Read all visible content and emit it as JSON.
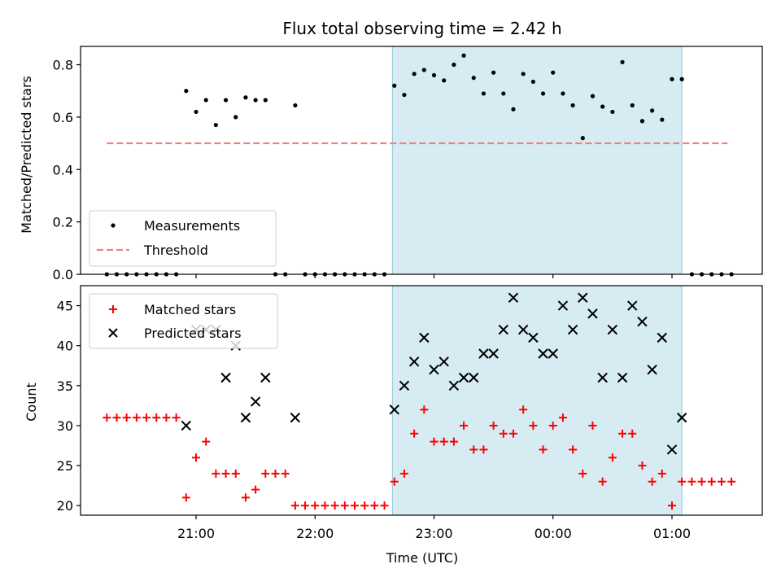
{
  "chart_data": {
    "type": "scatter",
    "title": "Flux total observing time = 2.42 h",
    "xlabel": "Time (UTC)",
    "x_ticks": [
      "21:00",
      "22:00",
      "23:00",
      "00:00",
      "01:00"
    ],
    "colors": {
      "measurements": "#000000",
      "threshold": "#f08080",
      "matched": "#ff0000",
      "predicted": "#000000",
      "span": "#add8e6"
    },
    "observing_span": {
      "start": "22:39",
      "end": "01:05"
    },
    "top_panel": {
      "ylabel": "Matched/Predicted stars",
      "ylim": [
        0,
        0.87
      ],
      "y_ticks": [
        "0.0",
        "0.2",
        "0.4",
        "0.6",
        "0.8"
      ],
      "threshold": 0.5,
      "threshold_range": [
        "20:15",
        "01:28"
      ],
      "legend": [
        "Measurements",
        "Threshold"
      ],
      "legend_position": "lower-left",
      "measurements": [
        {
          "t": "20:15",
          "v": 0.0
        },
        {
          "t": "20:20",
          "v": 0.0
        },
        {
          "t": "20:25",
          "v": 0.0
        },
        {
          "t": "20:30",
          "v": 0.0
        },
        {
          "t": "20:35",
          "v": 0.0
        },
        {
          "t": "20:40",
          "v": 0.0
        },
        {
          "t": "20:45",
          "v": 0.0
        },
        {
          "t": "20:50",
          "v": 0.0
        },
        {
          "t": "20:55",
          "v": 0.7
        },
        {
          "t": "21:00",
          "v": 0.62
        },
        {
          "t": "21:05",
          "v": 0.665
        },
        {
          "t": "21:10",
          "v": 0.57
        },
        {
          "t": "21:15",
          "v": 0.665
        },
        {
          "t": "21:20",
          "v": 0.6
        },
        {
          "t": "21:25",
          "v": 0.675
        },
        {
          "t": "21:30",
          "v": 0.665
        },
        {
          "t": "21:35",
          "v": 0.665
        },
        {
          "t": "21:40",
          "v": 0.0
        },
        {
          "t": "21:45",
          "v": 0.0
        },
        {
          "t": "21:50",
          "v": 0.645
        },
        {
          "t": "21:55",
          "v": 0.0
        },
        {
          "t": "22:00",
          "v": 0.0
        },
        {
          "t": "22:05",
          "v": 0.0
        },
        {
          "t": "22:10",
          "v": 0.0
        },
        {
          "t": "22:15",
          "v": 0.0
        },
        {
          "t": "22:20",
          "v": 0.0
        },
        {
          "t": "22:25",
          "v": 0.0
        },
        {
          "t": "22:30",
          "v": 0.0
        },
        {
          "t": "22:35",
          "v": 0.0
        },
        {
          "t": "22:40",
          "v": 0.72
        },
        {
          "t": "22:45",
          "v": 0.685
        },
        {
          "t": "22:50",
          "v": 0.765
        },
        {
          "t": "22:55",
          "v": 0.78
        },
        {
          "t": "23:00",
          "v": 0.76
        },
        {
          "t": "23:05",
          "v": 0.74
        },
        {
          "t": "23:10",
          "v": 0.8
        },
        {
          "t": "23:15",
          "v": 0.835
        },
        {
          "t": "23:20",
          "v": 0.75
        },
        {
          "t": "23:25",
          "v": 0.69
        },
        {
          "t": "23:30",
          "v": 0.77
        },
        {
          "t": "23:35",
          "v": 0.69
        },
        {
          "t": "23:40",
          "v": 0.63
        },
        {
          "t": "23:45",
          "v": 0.765
        },
        {
          "t": "23:50",
          "v": 0.735
        },
        {
          "t": "23:55",
          "v": 0.69
        },
        {
          "t": "00:00",
          "v": 0.77
        },
        {
          "t": "00:05",
          "v": 0.69
        },
        {
          "t": "00:10",
          "v": 0.645
        },
        {
          "t": "00:15",
          "v": 0.52
        },
        {
          "t": "00:20",
          "v": 0.68
        },
        {
          "t": "00:25",
          "v": 0.64
        },
        {
          "t": "00:30",
          "v": 0.62
        },
        {
          "t": "00:35",
          "v": 0.81
        },
        {
          "t": "00:40",
          "v": 0.645
        },
        {
          "t": "00:45",
          "v": 0.585
        },
        {
          "t": "00:50",
          "v": 0.625
        },
        {
          "t": "00:55",
          "v": 0.59
        },
        {
          "t": "01:00",
          "v": 0.745
        },
        {
          "t": "01:05",
          "v": 0.745
        },
        {
          "t": "01:10",
          "v": 0.0
        },
        {
          "t": "01:15",
          "v": 0.0
        },
        {
          "t": "01:20",
          "v": 0.0
        },
        {
          "t": "01:25",
          "v": 0.0
        },
        {
          "t": "01:30",
          "v": 0.0
        }
      ]
    },
    "bottom_panel": {
      "ylabel": "Count",
      "ylim": [
        18.8,
        47.5
      ],
      "y_ticks": [
        "20",
        "25",
        "30",
        "35",
        "40",
        "45"
      ],
      "legend": [
        "Matched stars",
        "Predicted stars"
      ],
      "legend_position": "upper-left",
      "matched": [
        {
          "t": "20:15",
          "v": 31
        },
        {
          "t": "20:20",
          "v": 31
        },
        {
          "t": "20:25",
          "v": 31
        },
        {
          "t": "20:30",
          "v": 31
        },
        {
          "t": "20:35",
          "v": 31
        },
        {
          "t": "20:40",
          "v": 31
        },
        {
          "t": "20:45",
          "v": 31
        },
        {
          "t": "20:50",
          "v": 31
        },
        {
          "t": "20:55",
          "v": 21
        },
        {
          "t": "21:00",
          "v": 26
        },
        {
          "t": "21:05",
          "v": 28
        },
        {
          "t": "21:10",
          "v": 24
        },
        {
          "t": "21:15",
          "v": 24
        },
        {
          "t": "21:20",
          "v": 24
        },
        {
          "t": "21:25",
          "v": 21
        },
        {
          "t": "21:30",
          "v": 22
        },
        {
          "t": "21:35",
          "v": 24
        },
        {
          "t": "21:40",
          "v": 24
        },
        {
          "t": "21:45",
          "v": 24
        },
        {
          "t": "21:50",
          "v": 20
        },
        {
          "t": "21:55",
          "v": 20
        },
        {
          "t": "22:00",
          "v": 20
        },
        {
          "t": "22:05",
          "v": 20
        },
        {
          "t": "22:10",
          "v": 20
        },
        {
          "t": "22:15",
          "v": 20
        },
        {
          "t": "22:20",
          "v": 20
        },
        {
          "t": "22:25",
          "v": 20
        },
        {
          "t": "22:30",
          "v": 20
        },
        {
          "t": "22:35",
          "v": 20
        },
        {
          "t": "22:40",
          "v": 23
        },
        {
          "t": "22:45",
          "v": 24
        },
        {
          "t": "22:50",
          "v": 29
        },
        {
          "t": "22:55",
          "v": 32
        },
        {
          "t": "23:00",
          "v": 28
        },
        {
          "t": "23:05",
          "v": 28
        },
        {
          "t": "23:10",
          "v": 28
        },
        {
          "t": "23:15",
          "v": 30
        },
        {
          "t": "23:20",
          "v": 27
        },
        {
          "t": "23:25",
          "v": 27
        },
        {
          "t": "23:30",
          "v": 30
        },
        {
          "t": "23:35",
          "v": 29
        },
        {
          "t": "23:40",
          "v": 29
        },
        {
          "t": "23:45",
          "v": 32
        },
        {
          "t": "23:50",
          "v": 30
        },
        {
          "t": "23:55",
          "v": 27
        },
        {
          "t": "00:00",
          "v": 30
        },
        {
          "t": "00:05",
          "v": 31
        },
        {
          "t": "00:10",
          "v": 27
        },
        {
          "t": "00:15",
          "v": 24
        },
        {
          "t": "00:20",
          "v": 30
        },
        {
          "t": "00:25",
          "v": 23
        },
        {
          "t": "00:30",
          "v": 26
        },
        {
          "t": "00:35",
          "v": 29
        },
        {
          "t": "00:40",
          "v": 29
        },
        {
          "t": "00:45",
          "v": 25
        },
        {
          "t": "00:50",
          "v": 23
        },
        {
          "t": "00:55",
          "v": 24
        },
        {
          "t": "01:00",
          "v": 20
        },
        {
          "t": "01:05",
          "v": 23
        },
        {
          "t": "01:10",
          "v": 23
        },
        {
          "t": "01:15",
          "v": 23
        },
        {
          "t": "01:20",
          "v": 23
        },
        {
          "t": "01:25",
          "v": 23
        },
        {
          "t": "01:30",
          "v": 23
        }
      ],
      "predicted": [
        {
          "t": "20:55",
          "v": 30
        },
        {
          "t": "21:00",
          "v": 42
        },
        {
          "t": "21:05",
          "v": 42
        },
        {
          "t": "21:10",
          "v": 42
        },
        {
          "t": "21:15",
          "v": 36
        },
        {
          "t": "21:20",
          "v": 40
        },
        {
          "t": "21:25",
          "v": 31
        },
        {
          "t": "21:30",
          "v": 33
        },
        {
          "t": "21:35",
          "v": 36
        },
        {
          "t": "21:50",
          "v": 31
        },
        {
          "t": "22:40",
          "v": 32
        },
        {
          "t": "22:45",
          "v": 35
        },
        {
          "t": "22:50",
          "v": 38
        },
        {
          "t": "22:55",
          "v": 41
        },
        {
          "t": "23:00",
          "v": 37
        },
        {
          "t": "23:05",
          "v": 38
        },
        {
          "t": "23:10",
          "v": 35
        },
        {
          "t": "23:15",
          "v": 36
        },
        {
          "t": "23:20",
          "v": 36
        },
        {
          "t": "23:25",
          "v": 39
        },
        {
          "t": "23:30",
          "v": 39
        },
        {
          "t": "23:35",
          "v": 42
        },
        {
          "t": "23:40",
          "v": 46
        },
        {
          "t": "23:45",
          "v": 42
        },
        {
          "t": "23:50",
          "v": 41
        },
        {
          "t": "23:55",
          "v": 39
        },
        {
          "t": "00:00",
          "v": 39
        },
        {
          "t": "00:05",
          "v": 45
        },
        {
          "t": "00:10",
          "v": 42
        },
        {
          "t": "00:15",
          "v": 46
        },
        {
          "t": "00:20",
          "v": 44
        },
        {
          "t": "00:25",
          "v": 36
        },
        {
          "t": "00:30",
          "v": 42
        },
        {
          "t": "00:35",
          "v": 36
        },
        {
          "t": "00:40",
          "v": 45
        },
        {
          "t": "00:45",
          "v": 43
        },
        {
          "t": "00:50",
          "v": 37
        },
        {
          "t": "00:55",
          "v": 41
        },
        {
          "t": "01:00",
          "v": 27
        },
        {
          "t": "01:05",
          "v": 31
        }
      ]
    }
  }
}
